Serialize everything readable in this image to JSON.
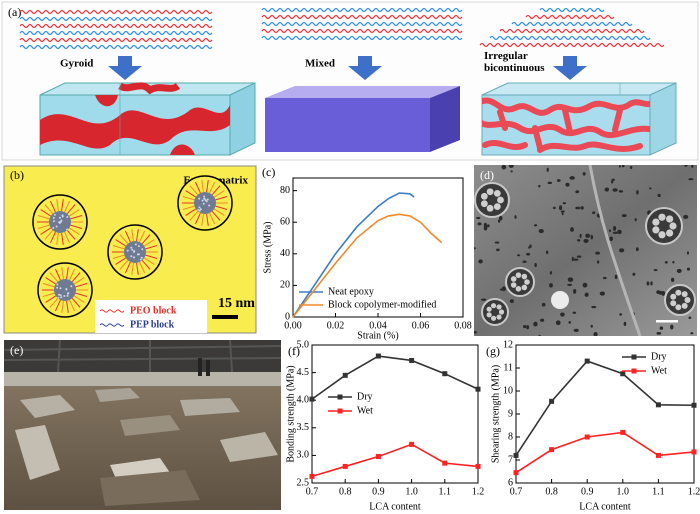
{
  "panels": {
    "a": {
      "label": "(a)",
      "captions": [
        "Gyroid",
        "Mixed",
        "Irregular bicontinuous"
      ]
    },
    "b": {
      "label": "(b)",
      "matrix": "Epoxy matrix",
      "legend": [
        "PEO block",
        "PEP block"
      ],
      "scale": "15 nm"
    },
    "d": {
      "label": "(d)"
    },
    "e": {
      "label": "(e)"
    }
  },
  "chart_data": [
    {
      "type": "line",
      "label": "(c)",
      "xlabel": "Strain (%)",
      "ylabel": "Stress (MPa)",
      "xlim": [
        0,
        0.08
      ],
      "ylim": [
        0,
        88
      ],
      "xticks": [
        {
          "value": 0,
          "label": "0.00"
        },
        {
          "value": 0.02,
          "label": "0.02"
        },
        {
          "value": 0.04,
          "label": "0.04"
        },
        {
          "value": 0.06,
          "label": "0.06"
        },
        {
          "value": 0.08,
          "label": "0.08"
        }
      ],
      "yticks": [
        0,
        20,
        40,
        60,
        80
      ],
      "legend": "lower left",
      "markers": false,
      "series": [
        {
          "name": "Neat epoxy",
          "color": "#3a7dc6",
          "x": [
            0,
            0.01,
            0.02,
            0.03,
            0.04,
            0.045,
            0.05,
            0.055,
            0.057
          ],
          "values": [
            0,
            20,
            40,
            57,
            70,
            75,
            78.5,
            78,
            76
          ]
        },
        {
          "name": "Block copolymer-modified",
          "color": "#f08a2a",
          "x": [
            0,
            0.01,
            0.02,
            0.03,
            0.04,
            0.045,
            0.05,
            0.055,
            0.06,
            0.065,
            0.07
          ],
          "values": [
            0,
            17,
            34,
            50,
            61,
            64,
            65,
            64,
            60,
            53,
            47
          ]
        }
      ]
    },
    {
      "type": "line",
      "label": "(f)",
      "xlabel": "LCA content",
      "ylabel": "Bonding strength (MPa)",
      "x": [
        0.7,
        0.8,
        0.9,
        1,
        1.1,
        1.2
      ],
      "xlim": [
        0.7,
        1.2
      ],
      "ylim": [
        2.5,
        5
      ],
      "xticks": [
        0.7,
        0.8,
        0.9,
        {
          "value": 1,
          "label": "1.0"
        },
        1.1,
        1.2
      ],
      "yticks": [
        2.5,
        {
          "value": 3,
          "label": "3.0"
        },
        3.5,
        {
          "value": 4,
          "label": "4.0"
        },
        4.5,
        {
          "value": 5,
          "label": "5.0"
        }
      ],
      "legend": "upper left",
      "markers": true,
      "series": [
        {
          "name": "Dry",
          "color": "#333333",
          "values": [
            4.02,
            4.45,
            4.8,
            4.72,
            4.48,
            4.2
          ]
        },
        {
          "name": "Wet",
          "color": "#ff2222",
          "values": [
            2.62,
            2.8,
            2.98,
            3.2,
            2.86,
            2.8
          ]
        }
      ]
    },
    {
      "type": "line",
      "label": "(g)",
      "xlabel": "LCA content",
      "ylabel": "Shearing strength (MPa)",
      "x": [
        0.7,
        0.8,
        0.9,
        1,
        1.1,
        1.2
      ],
      "xlim": [
        0.7,
        1.2
      ],
      "ylim": [
        6,
        12
      ],
      "xticks": [
        0.7,
        0.8,
        0.9,
        {
          "value": 1,
          "label": "1.0"
        },
        1.1,
        1.2
      ],
      "yticks": [
        6,
        7,
        8,
        9,
        10,
        11,
        12
      ],
      "legend": "upper right",
      "markers": true,
      "series": [
        {
          "name": "Dry",
          "color": "#333333",
          "values": [
            7.2,
            9.55,
            11.3,
            10.75,
            9.4,
            9.38
          ]
        },
        {
          "name": "Wet",
          "color": "#ff2222",
          "values": [
            6.45,
            7.45,
            8.0,
            8.2,
            7.2,
            7.35
          ]
        }
      ]
    }
  ]
}
